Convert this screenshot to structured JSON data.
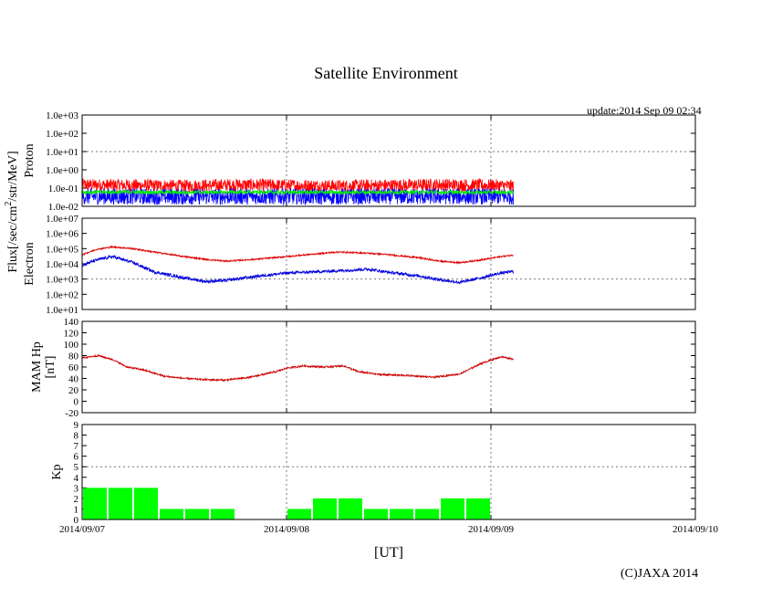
{
  "page": {
    "title": "Satellite Environment",
    "update": "update:2014 Sep 09 02:34",
    "copyright": "(C)JAXA 2014"
  },
  "colors": {
    "red": "#ff0000",
    "blue": "#0000ff",
    "green": "#00ee00",
    "darkred": "#cc0000",
    "kp": "#00ff00"
  },
  "chart_data": [
    {
      "type": "line",
      "name": "proton",
      "ylabel": "Proton",
      "yscale": "log",
      "ylim": [
        0.01,
        1000
      ],
      "yticks": [
        "1.0e-02",
        "1.0e-01",
        "1.0e+00",
        "1.0e+01",
        "1.0e+02",
        "1.0e+03"
      ],
      "grid_at": [
        10
      ],
      "series": [
        {
          "name": "proton-red",
          "color": "#ff0000",
          "x": [
            0,
            0.25,
            0.5,
            0.75,
            1.0,
            1.25,
            1.5,
            1.75,
            2.0,
            2.11
          ],
          "values": [
            0.15,
            0.14,
            0.13,
            0.15,
            0.14,
            0.13,
            0.14,
            0.15,
            0.14,
            0.13
          ],
          "noise": 0.35
        },
        {
          "name": "proton-blue",
          "color": "#0000ff",
          "x": [
            0,
            0.25,
            0.5,
            0.75,
            1.0,
            1.25,
            1.5,
            1.75,
            2.0,
            2.11
          ],
          "values": [
            0.035,
            0.035,
            0.034,
            0.035,
            0.035,
            0.034,
            0.035,
            0.035,
            0.035,
            0.034
          ],
          "noise": 0.45
        },
        {
          "name": "proton-green",
          "color": "#00ee00",
          "x": [
            0,
            0.25,
            0.5,
            0.75,
            1.0,
            1.25,
            1.5,
            1.75,
            2.0,
            2.11
          ],
          "values": [
            0.06,
            0.06,
            0.058,
            0.06,
            0.059,
            0.058,
            0.06,
            0.059,
            0.058,
            0.058
          ],
          "noise": 0.1
        }
      ]
    },
    {
      "type": "line",
      "name": "electron",
      "ylabel": "Electron",
      "yscale": "log",
      "ylim": [
        10,
        10000000
      ],
      "yticks": [
        "1.0e+01",
        "1.0e+02",
        "1.0e+03",
        "1.0e+04",
        "1.0e+05",
        "1.0e+06",
        "1.0e+07"
      ],
      "grid_at": [
        1000
      ],
      "series": [
        {
          "name": "electron-red",
          "color": "#dd0000",
          "x": [
            0,
            0.07,
            0.15,
            0.25,
            0.35,
            0.5,
            0.6,
            0.7,
            0.85,
            1.0,
            1.1,
            1.25,
            1.4,
            1.5,
            1.65,
            1.75,
            1.85,
            1.95,
            2.05,
            2.11
          ],
          "values": [
            40000,
            90000,
            130000,
            100000,
            60000,
            30000,
            20000,
            15000,
            20000,
            30000,
            40000,
            60000,
            50000,
            40000,
            25000,
            15000,
            12000,
            18000,
            30000,
            38000
          ],
          "noise": 0.05
        },
        {
          "name": "electron-blue",
          "color": "#0000dd",
          "x": [
            0,
            0.07,
            0.15,
            0.25,
            0.35,
            0.5,
            0.6,
            0.7,
            0.85,
            1.0,
            1.1,
            1.25,
            1.4,
            1.5,
            1.65,
            1.75,
            1.85,
            1.95,
            2.05,
            2.11
          ],
          "values": [
            8000,
            18000,
            30000,
            12000,
            3000,
            1200,
            700,
            800,
            1500,
            2500,
            2800,
            3500,
            4500,
            2800,
            1600,
            900,
            600,
            1200,
            2500,
            3200
          ],
          "noise": 0.1
        }
      ]
    },
    {
      "type": "line",
      "name": "mam-hp",
      "ylabel": "MAM Hp",
      "ylabel2": "[nT]",
      "ylim": [
        -20,
        140
      ],
      "yticks": [
        "-20",
        "0",
        "20",
        "40",
        "60",
        "80",
        "100",
        "120",
        "140"
      ],
      "grid_at": [],
      "series": [
        {
          "name": "hp-red",
          "color": "#cc0000",
          "x": [
            0,
            0.08,
            0.15,
            0.22,
            0.3,
            0.4,
            0.5,
            0.6,
            0.7,
            0.82,
            0.95,
            1.0,
            1.08,
            1.18,
            1.28,
            1.35,
            1.45,
            1.6,
            1.72,
            1.85,
            1.95,
            2.05,
            2.11
          ],
          "values": [
            76,
            80,
            73,
            60,
            55,
            44,
            40,
            38,
            37,
            42,
            52,
            58,
            62,
            60,
            62,
            52,
            47,
            45,
            42,
            48,
            66,
            78,
            74
          ],
          "noise": 1.5
        }
      ]
    },
    {
      "type": "bar",
      "name": "kp",
      "ylabel": "Kp",
      "ylim": [
        0,
        9
      ],
      "yticks": [
        "0",
        "1",
        "2",
        "3",
        "4",
        "5",
        "6",
        "7",
        "8",
        "9"
      ],
      "grid_at": [
        5
      ],
      "color": "#00ff00",
      "bar_width": 0.125,
      "x": [
        0,
        0.125,
        0.25,
        0.375,
        0.5,
        0.625,
        1.0,
        1.125,
        1.25,
        1.375,
        1.5,
        1.625,
        1.75,
        1.875
      ],
      "values": [
        3,
        3,
        3,
        1,
        1,
        1,
        1,
        2,
        2,
        1,
        1,
        1,
        2,
        2
      ]
    }
  ],
  "axes": {
    "flux_label": "Flux[/sec/cm",
    "flux_sup": "2",
    "flux_label_end": "/str/MeV]",
    "xlabel": "[UT]",
    "xlim": [
      0,
      3
    ],
    "xticks": [
      "2014/09/07",
      "2014/09/08",
      "2014/09/09",
      "2014/09/10"
    ]
  }
}
